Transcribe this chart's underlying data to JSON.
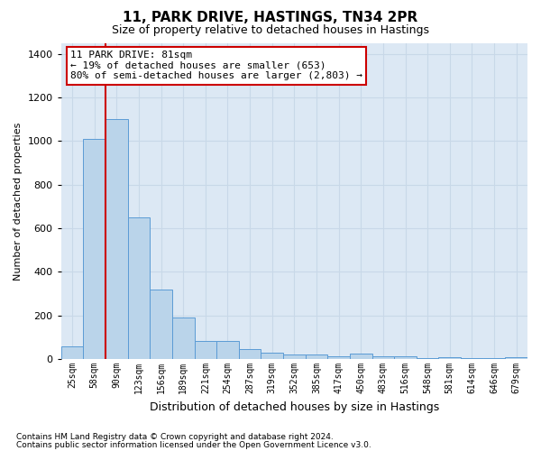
{
  "title1": "11, PARK DRIVE, HASTINGS, TN34 2PR",
  "title2": "Size of property relative to detached houses in Hastings",
  "xlabel": "Distribution of detached houses by size in Hastings",
  "ylabel": "Number of detached properties",
  "footer1": "Contains HM Land Registry data © Crown copyright and database right 2024.",
  "footer2": "Contains public sector information licensed under the Open Government Licence v3.0.",
  "annotation_line1": "11 PARK DRIVE: 81sqm",
  "annotation_line2": "← 19% of detached houses are smaller (653)",
  "annotation_line3": "80% of semi-detached houses are larger (2,803) →",
  "bar_color": "#bad4ea",
  "bar_edge_color": "#5b9bd5",
  "grid_color": "#c8d8e8",
  "background_color": "#dce8f4",
  "vline_color": "#cc0000",
  "annotation_border_color": "#cc0000",
  "categories": [
    "25sqm",
    "58sqm",
    "90sqm",
    "123sqm",
    "156sqm",
    "189sqm",
    "221sqm",
    "254sqm",
    "287sqm",
    "319sqm",
    "352sqm",
    "385sqm",
    "417sqm",
    "450sqm",
    "483sqm",
    "516sqm",
    "548sqm",
    "581sqm",
    "614sqm",
    "646sqm",
    "679sqm"
  ],
  "values": [
    60,
    1010,
    1100,
    650,
    320,
    190,
    85,
    85,
    45,
    30,
    20,
    20,
    15,
    25,
    15,
    15,
    5,
    10,
    5,
    5,
    10
  ],
  "ylim": [
    0,
    1450
  ],
  "yticks": [
    0,
    200,
    400,
    600,
    800,
    1000,
    1200,
    1400
  ],
  "vline_x": 2.0,
  "figsize": [
    6.0,
    5.0
  ],
  "dpi": 100
}
